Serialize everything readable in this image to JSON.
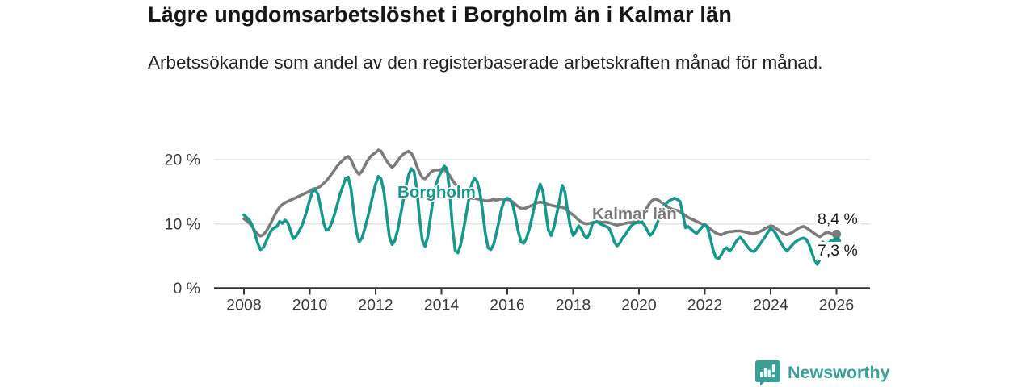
{
  "header": {
    "title": "Lägre ungdomsarbetslöshet i Borgholm än i Kalmar län",
    "subtitle": "Arbetssökande som andel av den registerbaserade arbetskraften månad för månad."
  },
  "branding": {
    "logo_text": "Newsworthy",
    "logo_color": "#3aa096",
    "logo_icon": "bar-chart-speech-bubble-icon"
  },
  "chart_data": {
    "type": "line",
    "title": "Lägre ungdomsarbetslöshet i Borgholm än i Kalmar län",
    "xlabel": "",
    "ylabel": "",
    "unit": "%",
    "grid": "horizontal",
    "legend_position": "inline-labels",
    "x_axis": {
      "start_year": 2008,
      "interval_months": 1,
      "end_point": "2026-01",
      "tick_years": [
        2008,
        2010,
        2012,
        2014,
        2016,
        2018,
        2020,
        2022,
        2024,
        2026
      ]
    },
    "y_axis": {
      "ylim": [
        0,
        22
      ],
      "ticks": [
        {
          "value": 0,
          "label": "0 %"
        },
        {
          "value": 10,
          "label": "10 %"
        },
        {
          "value": 20,
          "label": "20 %"
        }
      ]
    },
    "series": [
      {
        "name": "Kalmar län",
        "color": "#7c7c7c",
        "end_label": "8,4 %",
        "end_value": 8.4,
        "values": [
          10.8,
          10.5,
          10.1,
          9.6,
          8.9,
          8.4,
          8.1,
          8.3,
          8.8,
          9.5,
          10.3,
          11.2,
          12.0,
          12.6,
          13.0,
          13.3,
          13.5,
          13.7,
          13.9,
          14.1,
          14.3,
          14.5,
          14.7,
          14.9,
          15.1,
          15.4,
          15.5,
          15.6,
          15.9,
          16.3,
          16.7,
          17.2,
          17.8,
          18.4,
          19.0,
          19.5,
          19.9,
          20.3,
          20.5,
          20.0,
          19.0,
          18.2,
          17.7,
          18.2,
          19.0,
          19.8,
          20.4,
          20.8,
          21.1,
          21.5,
          21.3,
          20.5,
          19.8,
          19.2,
          18.8,
          19.2,
          19.8,
          20.4,
          20.8,
          21.1,
          21.3,
          21.0,
          20.2,
          19.0,
          18.0,
          17.2,
          17.0,
          17.5,
          18.0,
          18.3,
          18.4,
          18.4,
          18.5,
          18.4,
          18.1,
          17.5,
          16.8,
          16.2,
          15.8,
          15.2,
          14.8,
          14.4,
          14.1,
          14.0,
          14.0,
          13.9,
          13.8,
          13.7,
          13.6,
          13.6,
          13.7,
          13.8,
          13.7,
          13.8,
          13.9,
          13.8,
          13.8,
          13.7,
          13.4,
          13.0,
          12.7,
          12.4,
          12.4,
          12.5,
          12.7,
          12.9,
          13.1,
          13.3,
          13.4,
          13.3,
          13.2,
          13.0,
          12.9,
          12.8,
          12.7,
          12.6,
          12.6,
          12.4,
          12.0,
          11.7,
          11.4,
          11.0,
          10.6,
          10.3,
          10.1,
          10.0,
          10.1,
          10.2,
          10.3,
          10.3,
          10.3,
          10.3,
          10.3,
          10.2,
          10.1,
          9.9,
          9.8,
          9.9,
          10.0,
          10.1,
          10.2,
          10.2,
          10.3,
          10.4,
          10.5,
          10.8,
          11.5,
          12.6,
          13.3,
          13.7,
          13.9,
          13.7,
          13.4,
          13.1,
          12.8,
          12.5,
          12.3,
          12.2,
          12.1,
          11.9,
          11.6,
          11.3,
          11.0,
          10.8,
          10.6,
          10.4,
          10.2,
          10.0,
          9.9,
          9.6,
          9.2,
          8.9,
          8.6,
          8.4,
          8.3,
          8.5,
          8.7,
          8.8,
          8.8,
          8.9,
          8.9,
          8.9,
          8.8,
          8.7,
          8.6,
          8.5,
          8.5,
          8.6,
          8.8,
          9.0,
          9.3,
          9.5,
          9.7,
          9.6,
          9.3,
          9.0,
          8.7,
          8.4,
          8.3,
          8.5,
          8.7,
          9.0,
          9.3,
          9.5,
          9.6,
          9.4,
          9.1,
          8.8,
          8.5,
          8.2,
          8.0,
          8.3,
          8.6,
          8.7,
          8.5,
          8.3,
          8.4
        ]
      },
      {
        "name": "Borgholm",
        "color": "#17998a",
        "end_label": "7,3 %",
        "end_value": 7.3,
        "values": [
          11.4,
          11.0,
          10.6,
          9.8,
          8.5,
          7.0,
          6.0,
          6.3,
          7.2,
          8.2,
          9.0,
          9.4,
          9.6,
          10.4,
          10.1,
          10.6,
          10.2,
          8.9,
          7.7,
          8.1,
          8.8,
          9.6,
          10.8,
          12.2,
          13.8,
          15.0,
          15.3,
          14.6,
          12.5,
          10.2,
          9.0,
          9.2,
          10.2,
          11.5,
          13.0,
          14.6,
          15.8,
          17.0,
          17.3,
          15.5,
          12.0,
          8.8,
          7.2,
          7.8,
          9.2,
          10.8,
          12.6,
          14.5,
          16.2,
          17.4,
          17.0,
          15.0,
          11.5,
          8.0,
          6.8,
          7.4,
          9.0,
          11.2,
          13.5,
          15.8,
          17.6,
          18.6,
          18.2,
          15.5,
          11.0,
          7.5,
          6.5,
          8.0,
          11.0,
          14.0,
          16.0,
          17.3,
          18.2,
          19.0,
          18.6,
          15.0,
          9.5,
          5.9,
          5.5,
          6.8,
          9.0,
          11.5,
          14.0,
          16.2,
          17.1,
          16.6,
          15.0,
          12.0,
          8.5,
          6.3,
          6.0,
          6.8,
          8.5,
          10.5,
          12.5,
          13.8,
          14.0,
          13.8,
          13.0,
          11.0,
          8.8,
          7.2,
          7.0,
          7.8,
          9.2,
          11.0,
          13.0,
          14.8,
          16.2,
          15.0,
          12.0,
          9.0,
          8.2,
          9.5,
          11.5,
          13.5,
          16.0,
          15.0,
          12.0,
          9.5,
          8.2,
          8.8,
          9.7,
          9.2,
          8.2,
          7.8,
          8.5,
          10.0,
          10.5,
          10.3,
          10.0,
          9.8,
          9.6,
          9.4,
          8.5,
          7.2,
          6.6,
          7.0,
          7.8,
          8.3,
          9.0,
          9.6,
          10.0,
          10.2,
          10.2,
          10.4,
          9.8,
          9.0,
          8.2,
          8.6,
          9.5,
          10.5,
          11.5,
          12.4,
          13.2,
          13.6,
          13.8,
          14.0,
          13.8,
          13.5,
          11.5,
          9.4,
          9.6,
          9.2,
          8.8,
          8.5,
          9.0,
          9.5,
          9.9,
          9.4,
          7.8,
          6.0,
          4.8,
          4.6,
          5.2,
          6.0,
          6.3,
          5.8,
          6.2,
          7.0,
          7.6,
          7.9,
          7.4,
          6.8,
          6.2,
          5.8,
          5.7,
          6.2,
          6.8,
          7.4,
          8.0,
          8.7,
          9.3,
          9.0,
          8.4,
          7.6,
          6.9,
          6.2,
          5.8,
          6.3,
          6.8,
          7.2,
          7.5,
          7.7,
          7.8,
          7.6,
          6.8,
          5.6,
          4.4,
          3.7,
          4.5,
          7.2,
          6.8,
          7.0,
          7.4,
          7.2,
          7.3
        ]
      }
    ]
  }
}
